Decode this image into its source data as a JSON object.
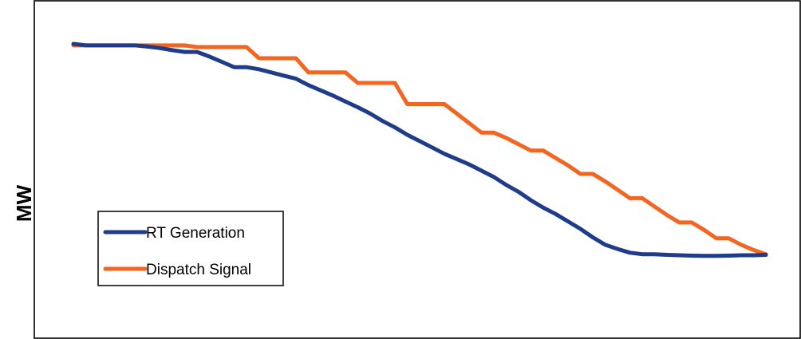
{
  "chart_data": {
    "type": "line",
    "title": "",
    "xlabel": "",
    "ylabel": "MW",
    "xlim": [
      0,
      56
    ],
    "ylim": [
      0,
      100
    ],
    "grid": false,
    "legend_position": "bottom-left",
    "x": [
      0,
      1,
      2,
      3,
      4,
      5,
      6,
      7,
      8,
      9,
      10,
      11,
      12,
      13,
      14,
      15,
      16,
      17,
      18,
      19,
      20,
      21,
      22,
      23,
      24,
      25,
      26,
      27,
      28,
      29,
      30,
      31,
      32,
      33,
      34,
      35,
      36,
      37,
      38,
      39,
      40,
      41,
      42,
      43,
      44,
      45,
      46,
      47,
      48,
      49,
      50,
      51,
      52,
      53,
      54,
      55,
      56
    ],
    "series": [
      {
        "name": "RT Generation",
        "color": "#1f3c88",
        "values": [
          100,
          99.3,
          99.3,
          99.3,
          99.3,
          99.3,
          98.7,
          98,
          97,
          96.2,
          96.2,
          94,
          91.5,
          89,
          89,
          88,
          86.5,
          85,
          83.5,
          80.5,
          78,
          75.5,
          72.7,
          70,
          67,
          63.5,
          60.5,
          57,
          54,
          51,
          48,
          45.5,
          43,
          40,
          37,
          33.3,
          30,
          26,
          22.5,
          19.5,
          16,
          12.5,
          8.5,
          5,
          3,
          1.2,
          0.5,
          0.5,
          0.2,
          0,
          -0.2,
          -0.3,
          -0.3,
          -0.2,
          0,
          0,
          0.2
        ]
      },
      {
        "name": "Dispatch Signal",
        "color": "#f26522",
        "values": [
          99.3,
          99.3,
          99.3,
          99.3,
          99.3,
          99.3,
          99.3,
          99.3,
          99.3,
          99.3,
          98.5,
          98.5,
          98.5,
          98.5,
          98.5,
          93.2,
          93.2,
          93.2,
          93.2,
          86.5,
          86.5,
          86.5,
          86.5,
          81.5,
          81.5,
          81.5,
          81.5,
          71.5,
          71.5,
          71.5,
          71.5,
          67,
          62.5,
          58,
          58,
          55.5,
          52.5,
          49.5,
          49.5,
          46,
          42.5,
          38.5,
          38.5,
          35,
          31,
          27,
          27,
          23,
          19,
          15.5,
          15.5,
          12,
          8,
          8,
          5,
          2.5,
          0.5
        ]
      }
    ]
  }
}
